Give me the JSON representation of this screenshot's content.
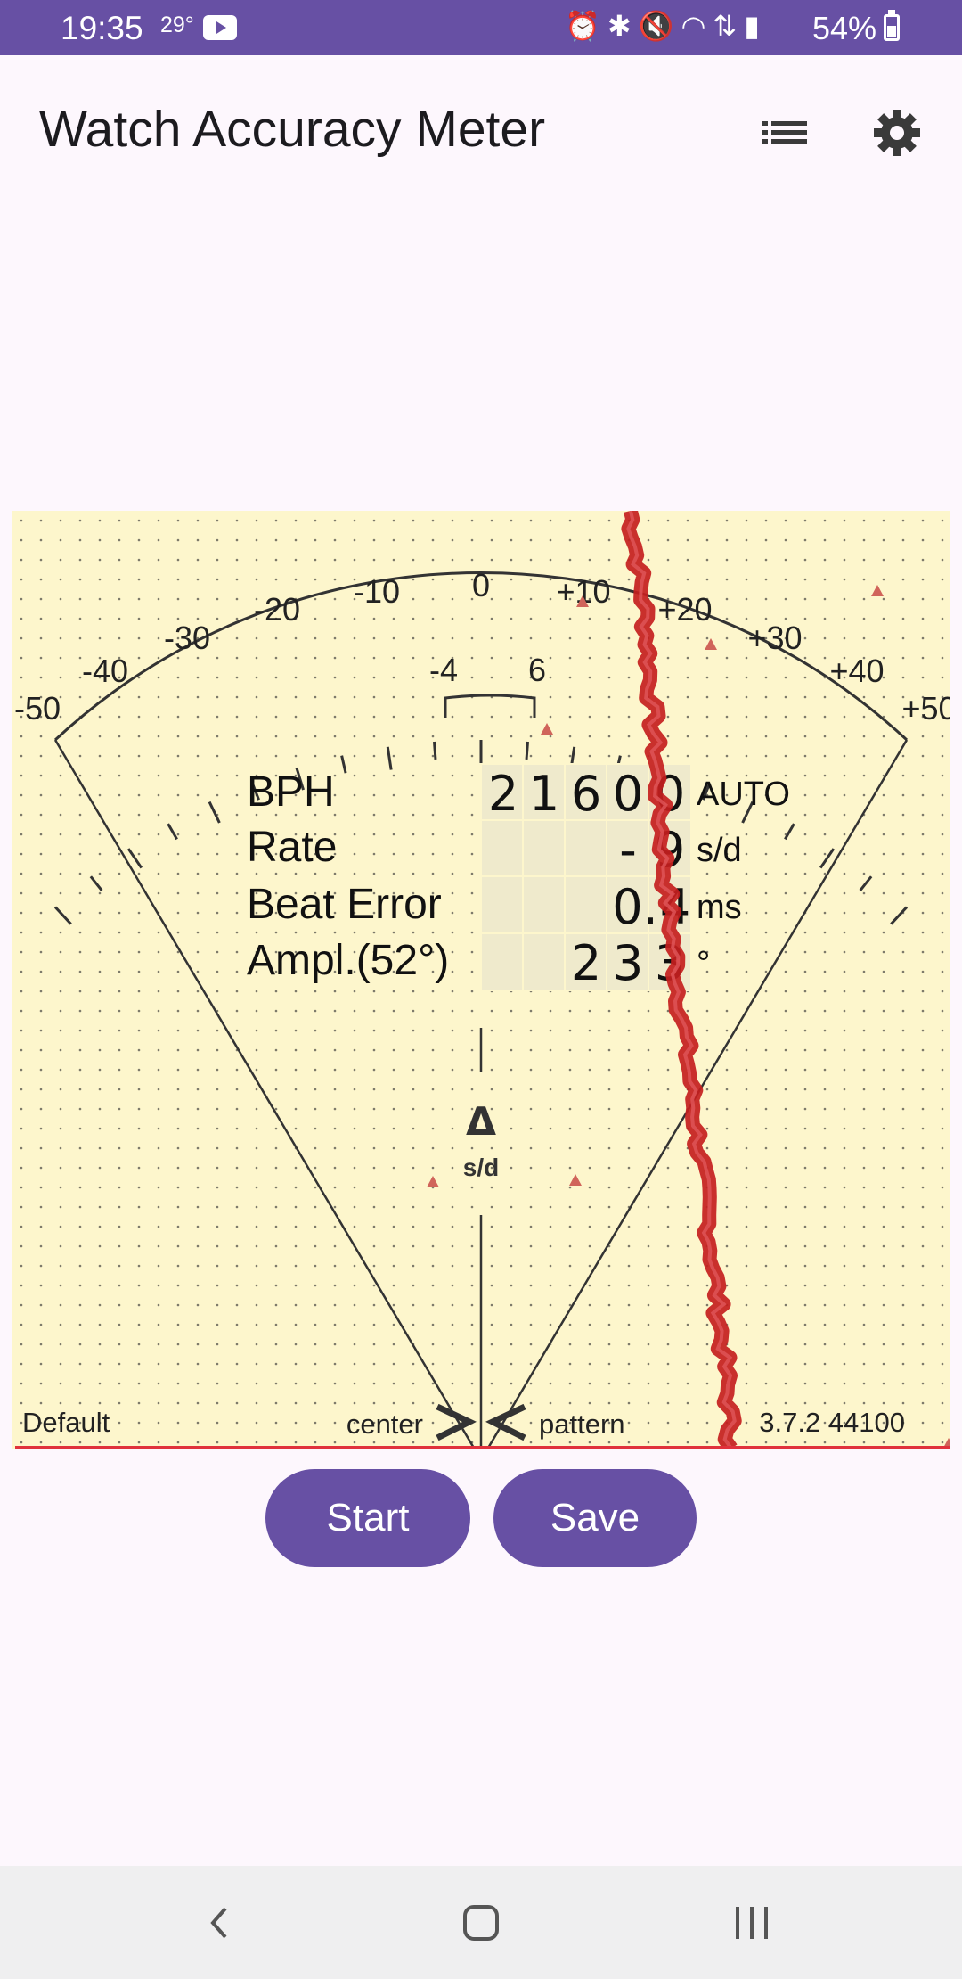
{
  "status_bar": {
    "time": "19:35",
    "temperature": "29°",
    "icons": [
      "youtube-icon",
      "alarm-icon",
      "bluetooth-icon",
      "mute-icon",
      "wifi-icon",
      "data-transfer-icon",
      "signal-icon",
      "battery-icon"
    ],
    "battery": "54%"
  },
  "app_bar": {
    "title": "Watch Accuracy Meter",
    "list_icon": "list-icon",
    "settings_icon": "gear-icon"
  },
  "meter": {
    "scale_labels": [
      "-50",
      "-40",
      "-30",
      "-20",
      "-10",
      "0",
      "+10",
      "+20",
      "+30",
      "+40",
      "+50"
    ],
    "inner_labels": [
      "-4",
      "6"
    ],
    "readings": [
      {
        "label": "BPH",
        "digits": [
          "2",
          "1",
          "6",
          "0",
          "0"
        ],
        "unit": "AUTO"
      },
      {
        "label": "Rate",
        "digits": [
          "",
          "",
          "",
          "-",
          "9"
        ],
        "unit": "s/d"
      },
      {
        "label": "Beat Error",
        "digits": [
          "",
          "",
          "",
          "0.",
          "4"
        ],
        "unit": "ms"
      },
      {
        "label": "Ampl.(52°)",
        "digits": [
          "",
          "",
          "2",
          "3",
          "3"
        ],
        "unit": "°"
      }
    ],
    "delta_symbol": "Δ",
    "delta_unit": "s/d",
    "profile": "Default",
    "center_label": "center",
    "pattern_label": "pattern",
    "version": "3.7.2 44100",
    "colors": {
      "background": "#fdf6cc",
      "trace": "#c41e1e",
      "baseline": "#e0323c",
      "marker": "#d0645a"
    }
  },
  "buttons": {
    "start": "Start",
    "save": "Save"
  },
  "nav": {
    "back_icon": "back-icon",
    "home_icon": "home-icon",
    "recents_icon": "recents-icon"
  }
}
